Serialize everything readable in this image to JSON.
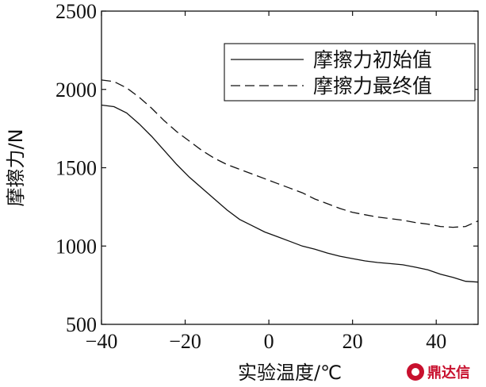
{
  "chart_data": {
    "type": "line",
    "title": "",
    "xlabel": "实验温度/℃",
    "ylabel": "摩擦力/N",
    "xlim": [
      -40,
      50
    ],
    "ylim": [
      500,
      2500
    ],
    "xticks": [
      -40,
      -20,
      0,
      20,
      40
    ],
    "yticks": [
      500,
      1000,
      1500,
      2000,
      2500
    ],
    "legend_position": "top-right",
    "grid": false,
    "series": [
      {
        "name": "摩擦力初始值",
        "line_style": "solid",
        "color": "#111111",
        "points": [
          [
            -40,
            1900
          ],
          [
            -37,
            1890
          ],
          [
            -34,
            1850
          ],
          [
            -31,
            1780
          ],
          [
            -28,
            1700
          ],
          [
            -25,
            1610
          ],
          [
            -22,
            1520
          ],
          [
            -19,
            1440
          ],
          [
            -16,
            1370
          ],
          [
            -13,
            1300
          ],
          [
            -10,
            1230
          ],
          [
            -7,
            1170
          ],
          [
            -4,
            1130
          ],
          [
            -1,
            1090
          ],
          [
            2,
            1060
          ],
          [
            5,
            1030
          ],
          [
            8,
            1000
          ],
          [
            11,
            980
          ],
          [
            14,
            955
          ],
          [
            17,
            935
          ],
          [
            20,
            920
          ],
          [
            23,
            905
          ],
          [
            26,
            895
          ],
          [
            29,
            888
          ],
          [
            32,
            880
          ],
          [
            35,
            865
          ],
          [
            38,
            848
          ],
          [
            41,
            820
          ],
          [
            44,
            800
          ],
          [
            47,
            775
          ],
          [
            50,
            770
          ]
        ]
      },
      {
        "name": "摩擦力最终值",
        "line_style": "dashed",
        "color": "#111111",
        "points": [
          [
            -40,
            2060
          ],
          [
            -37,
            2050
          ],
          [
            -34,
            2010
          ],
          [
            -31,
            1950
          ],
          [
            -28,
            1880
          ],
          [
            -25,
            1800
          ],
          [
            -22,
            1730
          ],
          [
            -19,
            1670
          ],
          [
            -16,
            1610
          ],
          [
            -13,
            1560
          ],
          [
            -10,
            1520
          ],
          [
            -7,
            1490
          ],
          [
            -4,
            1460
          ],
          [
            -1,
            1430
          ],
          [
            2,
            1400
          ],
          [
            5,
            1370
          ],
          [
            8,
            1340
          ],
          [
            11,
            1300
          ],
          [
            14,
            1270
          ],
          [
            17,
            1240
          ],
          [
            20,
            1215
          ],
          [
            23,
            1200
          ],
          [
            26,
            1185
          ],
          [
            29,
            1175
          ],
          [
            32,
            1165
          ],
          [
            35,
            1150
          ],
          [
            38,
            1140
          ],
          [
            41,
            1125
          ],
          [
            44,
            1120
          ],
          [
            47,
            1125
          ],
          [
            50,
            1160
          ]
        ]
      }
    ]
  },
  "watermark": {
    "text": "鼎达信",
    "color": "#c8102e"
  }
}
